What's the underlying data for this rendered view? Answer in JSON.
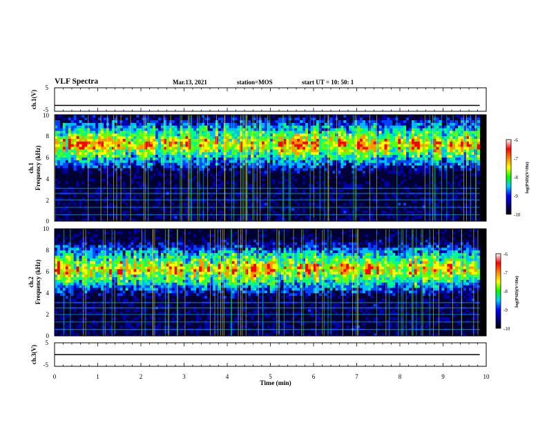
{
  "header": {
    "title": "VLF Spectra",
    "date": "Mar.13, 2021",
    "station": "station=MOS",
    "start": "start  UT =   10: 50: 1"
  },
  "chart_data": [
    {
      "type": "line",
      "id": "ch1",
      "ylabel": "ch.1(V)",
      "ylim": [
        -5,
        5
      ],
      "yticks": [
        "5",
        "-5"
      ],
      "series": [
        {
          "x": [
            0,
            9.85
          ],
          "y": [
            -2.5,
            -2.5
          ]
        }
      ]
    },
    {
      "type": "heatmap",
      "id": "spec1",
      "ylabel_line1": "ch.1",
      "ylabel_line2": "Frequency (kHz)",
      "ylim": [
        0,
        10
      ],
      "yticks": [
        "0",
        "2",
        "4",
        "6",
        "8",
        "10"
      ],
      "xlim": [
        0,
        9.85
      ],
      "emission_band_khz": [
        5,
        9.5
      ],
      "colorbar": {
        "label": "log(PSD)(V²/Hz)",
        "range": [
          -10,
          -6
        ],
        "ticks": [
          "-6",
          "-7",
          "-8",
          "-9",
          "-10"
        ],
        "colors": [
          "#ffffff",
          "#ff0000",
          "#ff8800",
          "#ffff00",
          "#00ff00",
          "#00ccff",
          "#0000ff",
          "#000080",
          "#000000"
        ]
      }
    },
    {
      "type": "heatmap",
      "id": "spec2",
      "ylabel_line1": "ch.2",
      "ylabel_line2": "Frequency (kHz)",
      "ylim": [
        0,
        10
      ],
      "yticks": [
        "0",
        "2",
        "4",
        "6",
        "8",
        "10"
      ],
      "xlim": [
        0,
        9.85
      ],
      "emission_band_khz": [
        4,
        8.5
      ],
      "colorbar": {
        "label": "log(PSD)(V²/Hz)",
        "range": [
          -10,
          -6
        ],
        "ticks": [
          "-6",
          "-7",
          "-8",
          "-9",
          "-10"
        ],
        "colors": [
          "#ffffff",
          "#ff0000",
          "#ff8800",
          "#ffff00",
          "#00ff00",
          "#00ccff",
          "#0000ff",
          "#000080",
          "#000000"
        ]
      }
    },
    {
      "type": "line",
      "id": "ch3",
      "ylabel": "ch.3(V)",
      "ylim": [
        -5,
        5
      ],
      "yticks": [
        "5",
        "-5"
      ],
      "series": [
        {
          "x": [
            0,
            9.85
          ],
          "y": [
            0,
            0
          ]
        }
      ]
    }
  ],
  "xaxis": {
    "label": "Time  (min)",
    "range": [
      0,
      10
    ],
    "ticks": [
      "0",
      "1",
      "2",
      "3",
      "4",
      "5",
      "6",
      "7",
      "8",
      "9",
      "10"
    ]
  }
}
